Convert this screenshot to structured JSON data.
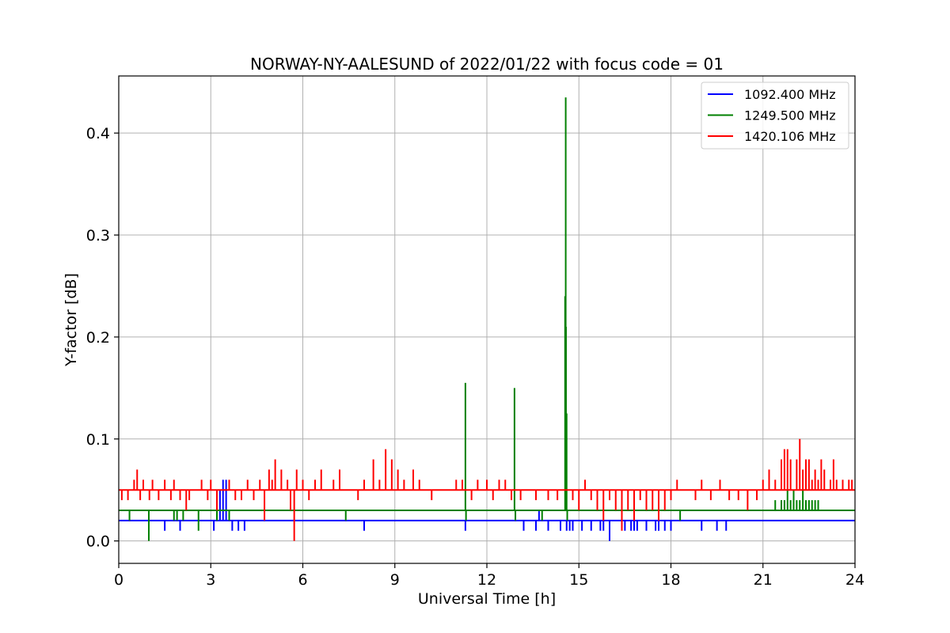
{
  "chart_data": {
    "type": "line",
    "title": "NORWAY-NY-AALESUND of 2022/01/22 with focus code = 01",
    "xlabel": "Universal Time [h]",
    "ylabel": "Y-factor [dB]",
    "xlim": [
      0,
      24
    ],
    "ylim": [
      -0.022,
      0.456
    ],
    "xticks": [
      0,
      3,
      6,
      9,
      12,
      15,
      18,
      21,
      24
    ],
    "yticks": [
      0.0,
      0.1,
      0.2,
      0.3,
      0.4
    ],
    "ytick_labels": [
      "0.0",
      "0.1",
      "0.2",
      "0.3",
      "0.4"
    ],
    "grid": true,
    "legend_position": "top-right",
    "series": [
      {
        "name": "1092.400 MHz",
        "color": "#0000ff",
        "baseline": 0.02,
        "events": [
          [
            1.5,
            0.01
          ],
          [
            2.0,
            0.01
          ],
          [
            3.1,
            0.01
          ],
          [
            3.3,
            0.05
          ],
          [
            3.4,
            0.06
          ],
          [
            3.5,
            0.06
          ],
          [
            3.7,
            0.01
          ],
          [
            3.9,
            0.01
          ],
          [
            4.1,
            0.01
          ],
          [
            8.0,
            0.01
          ],
          [
            11.3,
            0.01
          ],
          [
            13.2,
            0.01
          ],
          [
            13.6,
            0.01
          ],
          [
            13.7,
            0.03
          ],
          [
            14.0,
            0.01
          ],
          [
            14.4,
            0.01
          ],
          [
            14.6,
            0.01
          ],
          [
            14.7,
            0.01
          ],
          [
            14.8,
            0.01
          ],
          [
            15.1,
            0.01
          ],
          [
            15.4,
            0.01
          ],
          [
            15.7,
            0.01
          ],
          [
            15.8,
            0.01
          ],
          [
            16.0,
            0.0
          ],
          [
            16.5,
            0.01
          ],
          [
            16.7,
            0.01
          ],
          [
            16.8,
            0.01
          ],
          [
            16.9,
            0.01
          ],
          [
            17.2,
            0.01
          ],
          [
            17.5,
            0.01
          ],
          [
            17.6,
            0.01
          ],
          [
            17.8,
            0.01
          ],
          [
            18.0,
            0.01
          ],
          [
            19.0,
            0.01
          ],
          [
            19.5,
            0.01
          ],
          [
            19.8,
            0.01
          ]
        ]
      },
      {
        "name": "1249.500 MHz",
        "color": "#008000",
        "baseline": 0.03,
        "events": [
          [
            0.35,
            0.02
          ],
          [
            0.98,
            0.0
          ],
          [
            1.8,
            0.02
          ],
          [
            1.9,
            0.02
          ],
          [
            2.1,
            0.02
          ],
          [
            2.6,
            0.01
          ],
          [
            3.2,
            0.02
          ],
          [
            3.6,
            0.02
          ],
          [
            4.5,
            0.03
          ],
          [
            7.4,
            0.02
          ],
          [
            11.3,
            0.155
          ],
          [
            11.32,
            0.02
          ],
          [
            12.9,
            0.15
          ],
          [
            12.93,
            0.02
          ],
          [
            13.8,
            0.02
          ],
          [
            14.55,
            0.24
          ],
          [
            14.57,
            0.435
          ],
          [
            14.58,
            0.21
          ],
          [
            14.6,
            0.125
          ],
          [
            14.62,
            0.02
          ],
          [
            18.3,
            0.02
          ],
          [
            21.4,
            0.04
          ],
          [
            21.6,
            0.04
          ],
          [
            21.7,
            0.04
          ],
          [
            21.8,
            0.05
          ],
          [
            21.9,
            0.04
          ],
          [
            22.0,
            0.05
          ],
          [
            22.1,
            0.04
          ],
          [
            22.2,
            0.04
          ],
          [
            22.3,
            0.05
          ],
          [
            22.4,
            0.04
          ],
          [
            22.5,
            0.04
          ],
          [
            22.6,
            0.04
          ],
          [
            22.7,
            0.04
          ],
          [
            22.8,
            0.04
          ]
        ]
      },
      {
        "name": "1420.106 MHz",
        "color": "#ff0000",
        "baseline": 0.05,
        "events": [
          [
            0.1,
            0.04
          ],
          [
            0.3,
            0.04
          ],
          [
            0.5,
            0.06
          ],
          [
            0.6,
            0.07
          ],
          [
            0.7,
            0.04
          ],
          [
            0.8,
            0.06
          ],
          [
            0.9,
            0.05
          ],
          [
            1.0,
            0.04
          ],
          [
            1.1,
            0.06
          ],
          [
            1.3,
            0.04
          ],
          [
            1.5,
            0.06
          ],
          [
            1.7,
            0.04
          ],
          [
            1.8,
            0.06
          ],
          [
            2.0,
            0.04
          ],
          [
            2.2,
            0.03
          ],
          [
            2.3,
            0.04
          ],
          [
            2.4,
            0.05
          ],
          [
            2.7,
            0.06
          ],
          [
            2.9,
            0.04
          ],
          [
            3.0,
            0.06
          ],
          [
            3.2,
            0.03
          ],
          [
            3.4,
            0.05
          ],
          [
            3.6,
            0.06
          ],
          [
            3.8,
            0.04
          ],
          [
            4.0,
            0.04
          ],
          [
            4.2,
            0.06
          ],
          [
            4.4,
            0.04
          ],
          [
            4.6,
            0.06
          ],
          [
            4.75,
            0.02
          ],
          [
            4.9,
            0.07
          ],
          [
            5.0,
            0.06
          ],
          [
            5.1,
            0.08
          ],
          [
            5.3,
            0.07
          ],
          [
            5.5,
            0.06
          ],
          [
            5.6,
            0.03
          ],
          [
            5.72,
            0.0
          ],
          [
            5.8,
            0.07
          ],
          [
            6.0,
            0.06
          ],
          [
            6.2,
            0.04
          ],
          [
            6.4,
            0.06
          ],
          [
            6.6,
            0.07
          ],
          [
            6.8,
            0.05
          ],
          [
            7.0,
            0.06
          ],
          [
            7.2,
            0.07
          ],
          [
            7.5,
            0.05
          ],
          [
            7.8,
            0.04
          ],
          [
            8.0,
            0.06
          ],
          [
            8.3,
            0.08
          ],
          [
            8.5,
            0.06
          ],
          [
            8.7,
            0.09
          ],
          [
            8.9,
            0.08
          ],
          [
            9.1,
            0.07
          ],
          [
            9.3,
            0.06
          ],
          [
            9.6,
            0.07
          ],
          [
            9.8,
            0.06
          ],
          [
            10.2,
            0.04
          ],
          [
            11.0,
            0.06
          ],
          [
            11.2,
            0.06
          ],
          [
            11.5,
            0.04
          ],
          [
            11.7,
            0.06
          ],
          [
            12.0,
            0.06
          ],
          [
            12.2,
            0.04
          ],
          [
            12.4,
            0.06
          ],
          [
            12.6,
            0.06
          ],
          [
            12.8,
            0.04
          ],
          [
            13.1,
            0.04
          ],
          [
            13.4,
            0.05
          ],
          [
            13.6,
            0.04
          ],
          [
            13.8,
            0.05
          ],
          [
            14.0,
            0.04
          ],
          [
            14.3,
            0.04
          ],
          [
            14.6,
            0.05
          ],
          [
            14.8,
            0.04
          ],
          [
            15.0,
            0.03
          ],
          [
            15.2,
            0.06
          ],
          [
            15.4,
            0.04
          ],
          [
            15.6,
            0.03
          ],
          [
            15.8,
            0.02
          ],
          [
            16.0,
            0.04
          ],
          [
            16.2,
            0.03
          ],
          [
            16.4,
            0.01
          ],
          [
            16.6,
            0.03
          ],
          [
            16.8,
            0.02
          ],
          [
            17.0,
            0.04
          ],
          [
            17.2,
            0.03
          ],
          [
            17.4,
            0.03
          ],
          [
            17.6,
            0.02
          ],
          [
            17.8,
            0.03
          ],
          [
            18.0,
            0.04
          ],
          [
            18.2,
            0.06
          ],
          [
            18.5,
            0.05
          ],
          [
            18.8,
            0.04
          ],
          [
            19.0,
            0.06
          ],
          [
            19.3,
            0.04
          ],
          [
            19.6,
            0.06
          ],
          [
            19.9,
            0.04
          ],
          [
            20.2,
            0.04
          ],
          [
            20.5,
            0.03
          ],
          [
            20.8,
            0.04
          ],
          [
            21.0,
            0.06
          ],
          [
            21.2,
            0.07
          ],
          [
            21.4,
            0.06
          ],
          [
            21.6,
            0.08
          ],
          [
            21.7,
            0.09
          ],
          [
            21.8,
            0.09
          ],
          [
            21.9,
            0.08
          ],
          [
            22.0,
            0.05
          ],
          [
            22.1,
            0.08
          ],
          [
            22.2,
            0.1
          ],
          [
            22.3,
            0.07
          ],
          [
            22.4,
            0.08
          ],
          [
            22.5,
            0.08
          ],
          [
            22.6,
            0.06
          ],
          [
            22.7,
            0.07
          ],
          [
            22.8,
            0.06
          ],
          [
            22.9,
            0.08
          ],
          [
            23.0,
            0.07
          ],
          [
            23.1,
            0.05
          ],
          [
            23.2,
            0.06
          ],
          [
            23.3,
            0.08
          ],
          [
            23.4,
            0.06
          ],
          [
            23.5,
            0.05
          ],
          [
            23.6,
            0.06
          ],
          [
            23.8,
            0.06
          ],
          [
            23.9,
            0.06
          ]
        ]
      }
    ]
  }
}
